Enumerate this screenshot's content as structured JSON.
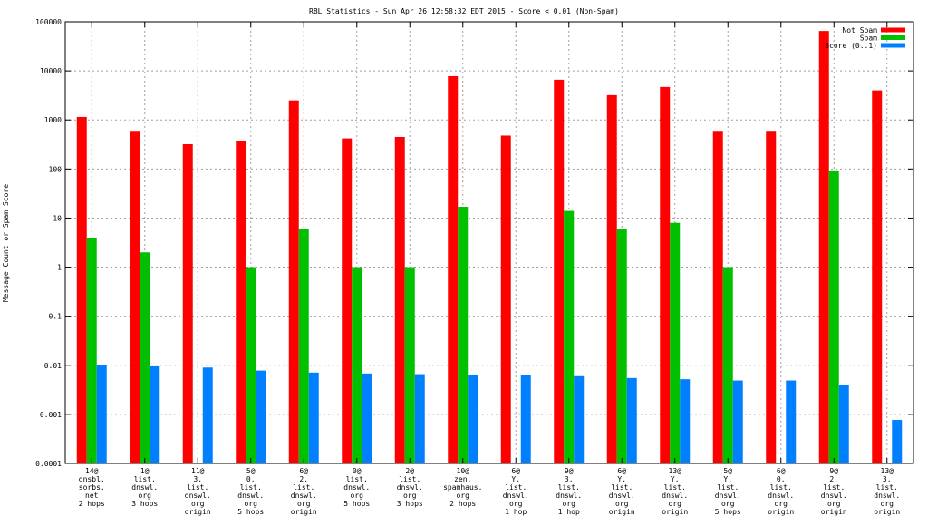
{
  "chart_data": {
    "type": "bar",
    "title": "RBL Statistics - Sun Apr 26 12:58:32 EDT 2015 - Score < 0.01 (Non-Spam)",
    "ylabel": "Message Count or Spam Score",
    "xlabel": "",
    "yscale": "log",
    "ylim": [
      0.0001,
      100000
    ],
    "yticks": [
      "0.0001",
      "0.001",
      "0.01",
      "0.1",
      "1",
      "10",
      "100",
      "1000",
      "10000",
      "100000"
    ],
    "grid": true,
    "legend_position": "top-right",
    "categories": [
      [
        "14@",
        "dnsbl.",
        "sorbs.",
        "net",
        "2 hops"
      ],
      [
        "1@",
        "list.",
        "dnswl.",
        "org",
        "3 hops"
      ],
      [
        "11@",
        "3.",
        "list.",
        "dnswl.",
        "org",
        "origin"
      ],
      [
        "5@",
        "0.",
        "list.",
        "dnswl.",
        "org",
        "5 hops"
      ],
      [
        "6@",
        "2.",
        "list.",
        "dnswl.",
        "org",
        "origin"
      ],
      [
        "0@",
        "list.",
        "dnswl.",
        "org",
        "5 hops"
      ],
      [
        "2@",
        "list.",
        "dnswl.",
        "org",
        "3 hops"
      ],
      [
        "10@",
        "zen.",
        "spamhaus.",
        "org",
        "2 hops"
      ],
      [
        "6@",
        "Y.",
        "list.",
        "dnswl.",
        "org",
        "1 hop"
      ],
      [
        "9@",
        "3.",
        "list.",
        "dnswl.",
        "org",
        "1 hop"
      ],
      [
        "6@",
        "Y.",
        "list.",
        "dnswl.",
        "org",
        "origin"
      ],
      [
        "13@",
        "Y.",
        "list.",
        "dnswl.",
        "org",
        "origin"
      ],
      [
        "5@",
        "Y.",
        "list.",
        "dnswl.",
        "org",
        "5 hops"
      ],
      [
        "6@",
        "0.",
        "list.",
        "dnswl.",
        "org",
        "origin"
      ],
      [
        "9@",
        "2.",
        "list.",
        "dnswl.",
        "org",
        "origin"
      ],
      [
        "13@",
        "3.",
        "list.",
        "dnswl.",
        "org",
        "origin"
      ]
    ],
    "series": [
      {
        "name": "Not Spam",
        "color": "#ff0000",
        "values": [
          1150,
          600,
          320,
          370,
          2500,
          420,
          450,
          7800,
          480,
          6600,
          3200,
          4700,
          600,
          600,
          65000,
          4000
        ]
      },
      {
        "name": "Spam",
        "color": "#00c000",
        "values": [
          4,
          2,
          0,
          1,
          6,
          1,
          1,
          17,
          0,
          14,
          6,
          8,
          1,
          0,
          90,
          0
        ]
      },
      {
        "name": "Score (0..1)",
        "color": "#0080ff",
        "values": [
          0.01,
          0.0095,
          0.009,
          0.0078,
          0.0071,
          0.0068,
          0.0066,
          0.0063,
          0.0063,
          0.006,
          0.0055,
          0.0052,
          0.0049,
          0.0049,
          0.004,
          0.00077
        ]
      }
    ]
  }
}
